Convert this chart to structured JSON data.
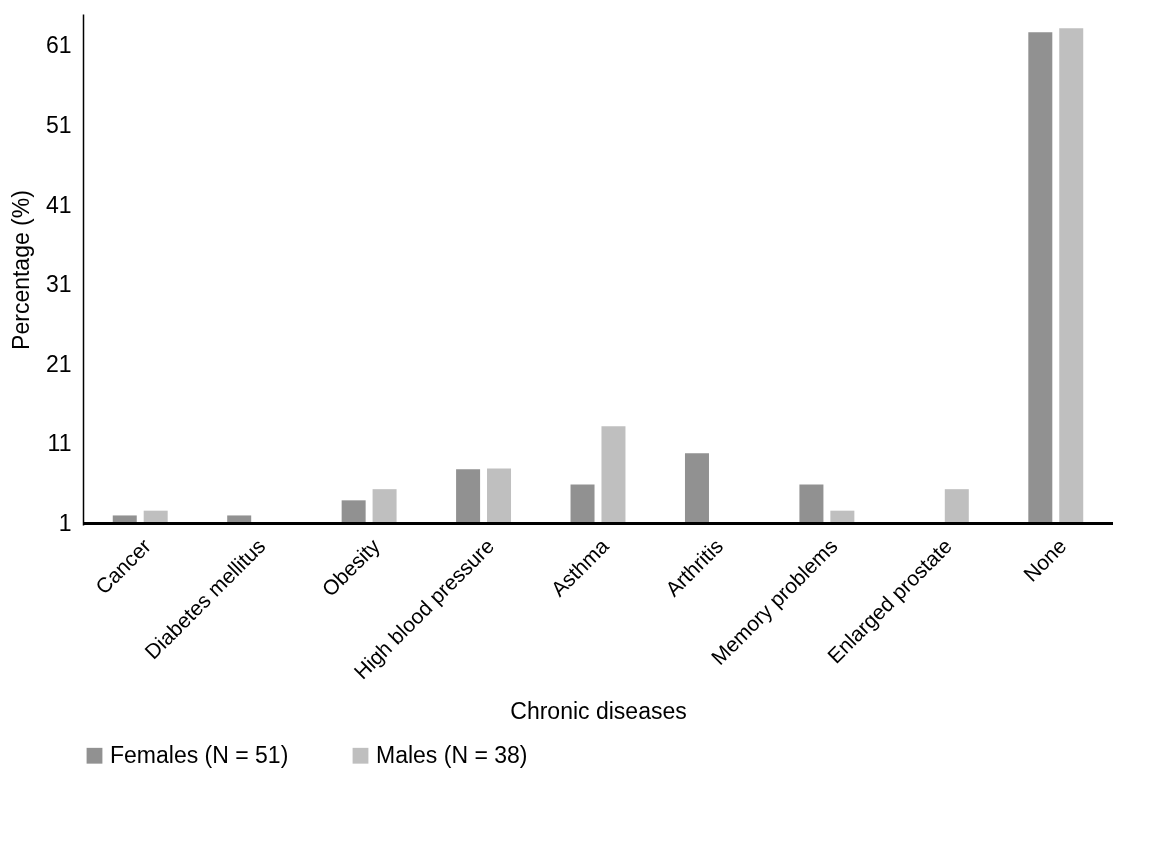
{
  "chart_data": {
    "type": "bar",
    "xlabel": "Chronic diseases",
    "ylabel": "Percentage (%)",
    "categories": [
      "Cancer",
      "Diabetes mellitus",
      "Obesity",
      "High blood pressure",
      "Asthma",
      "Arthritis",
      "Memory problems",
      "Enlarged prostate",
      "None"
    ],
    "series": [
      {
        "name": "Females (N = 51)",
        "color": "#919191",
        "values": [
          2.0,
          2.0,
          3.9,
          7.8,
          5.9,
          9.8,
          5.9,
          null,
          62.7
        ]
      },
      {
        "name": "Males (N = 38)",
        "color": "#bfbfbf",
        "values": [
          2.6,
          null,
          5.3,
          7.9,
          13.2,
          null,
          2.6,
          5.3,
          63.2
        ]
      }
    ],
    "ylim": [
      0.8,
      65
    ],
    "yticks": [
      1,
      11,
      21,
      31,
      41,
      51,
      61
    ],
    "grid": false,
    "legend": "bottom"
  }
}
